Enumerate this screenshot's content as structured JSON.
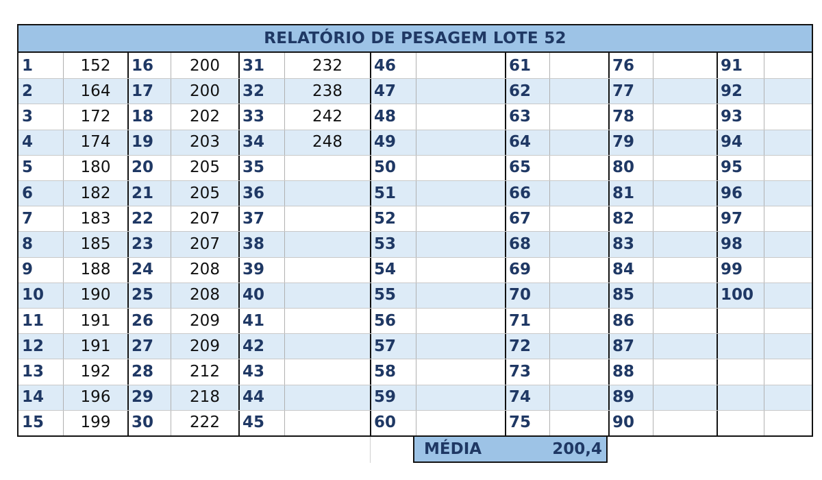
{
  "title": "RELATÓRIO DE PESAGEM LOTE 52",
  "columns": [
    {
      "numbers": [
        "1",
        "2",
        "3",
        "4",
        "5",
        "6",
        "7",
        "8",
        "9",
        "10",
        "11",
        "12",
        "13",
        "14",
        "15"
      ],
      "weights": [
        "152",
        "164",
        "172",
        "174",
        "180",
        "182",
        "183",
        "185",
        "188",
        "190",
        "191",
        "191",
        "192",
        "196",
        "199"
      ]
    },
    {
      "numbers": [
        "16",
        "17",
        "18",
        "19",
        "20",
        "21",
        "22",
        "23",
        "24",
        "25",
        "26",
        "27",
        "28",
        "29",
        "30"
      ],
      "weights": [
        "200",
        "200",
        "202",
        "203",
        "205",
        "205",
        "207",
        "207",
        "208",
        "208",
        "209",
        "209",
        "212",
        "218",
        "222"
      ]
    },
    {
      "numbers": [
        "31",
        "32",
        "33",
        "34",
        "35",
        "36",
        "37",
        "38",
        "39",
        "40",
        "41",
        "42",
        "43",
        "44",
        "45"
      ],
      "weights": [
        "232",
        "238",
        "242",
        "248",
        "",
        "",
        "",
        "",
        "",
        "",
        "",
        "",
        "",
        "",
        ""
      ]
    },
    {
      "numbers": [
        "46",
        "47",
        "48",
        "49",
        "50",
        "51",
        "52",
        "53",
        "54",
        "55",
        "56",
        "57",
        "58",
        "59",
        "60"
      ],
      "weights": [
        "",
        "",
        "",
        "",
        "",
        "",
        "",
        "",
        "",
        "",
        "",
        "",
        "",
        "",
        ""
      ]
    },
    {
      "numbers": [
        "61",
        "62",
        "63",
        "64",
        "65",
        "66",
        "67",
        "68",
        "69",
        "70",
        "71",
        "72",
        "73",
        "74",
        "75"
      ],
      "weights": [
        "",
        "",
        "",
        "",
        "",
        "",
        "",
        "",
        "",
        "",
        "",
        "",
        "",
        "",
        ""
      ]
    },
    {
      "numbers": [
        "76",
        "77",
        "78",
        "79",
        "80",
        "81",
        "82",
        "83",
        "84",
        "85",
        "86",
        "87",
        "88",
        "89",
        "90"
      ],
      "weights": [
        "",
        "",
        "",
        "",
        "",
        "",
        "",
        "",
        "",
        "",
        "",
        "",
        "",
        "",
        ""
      ]
    },
    {
      "numbers": [
        "91",
        "92",
        "93",
        "94",
        "95",
        "96",
        "97",
        "98",
        "99",
        "100",
        "",
        "",
        "",
        "",
        ""
      ],
      "weights": [
        "",
        "",
        "",
        "",
        "",
        "",
        "",
        "",
        "",
        "",
        "",
        "",
        "",
        "",
        ""
      ]
    }
  ],
  "summary": {
    "label": "MÉDIA",
    "value": "200,4"
  },
  "colors": {
    "header_bg": "#9dc3e6",
    "shade": "#ddebf7",
    "number_text": "#1f3864"
  }
}
